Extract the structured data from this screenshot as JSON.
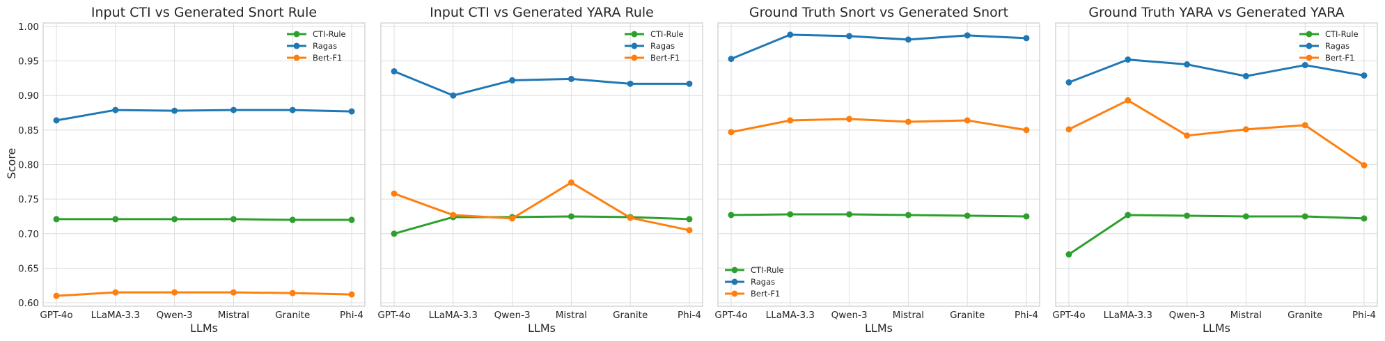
{
  "figure": {
    "ylabel": "Score"
  },
  "chart_data": [
    {
      "type": "line",
      "title": "Input CTI vs Generated Snort Rule",
      "xlabel": "LLMs",
      "ylabel": "Score",
      "categories": [
        "GPT-4o",
        "LLaMA-3.3",
        "Qwen-3",
        "Mistral",
        "Granite",
        "Phi-4"
      ],
      "ylim": [
        0.595,
        1.005
      ],
      "yticks": [
        "0.60",
        "0.65",
        "0.70",
        "0.75",
        "0.80",
        "0.85",
        "0.90",
        "0.95",
        "1.00"
      ],
      "grid": true,
      "legend_position": "top-right",
      "series": [
        {
          "name": "CTI-Rule",
          "color": "#2ca02c",
          "values": [
            0.721,
            0.721,
            0.721,
            0.721,
            0.72,
            0.72
          ]
        },
        {
          "name": "Ragas",
          "color": "#1f77b4",
          "values": [
            0.864,
            0.879,
            0.878,
            0.879,
            0.879,
            0.877
          ]
        },
        {
          "name": "Bert-F1",
          "color": "#ff7f0e",
          "values": [
            0.61,
            0.615,
            0.615,
            0.615,
            0.614,
            0.612
          ]
        }
      ]
    },
    {
      "type": "line",
      "title": "Input CTI vs Generated YARA Rule",
      "xlabel": "LLMs",
      "categories": [
        "GPT-4o",
        "LLaMA-3.3",
        "Qwen-3",
        "Mistral",
        "Granite",
        "Phi-4"
      ],
      "ylim": [
        0.595,
        1.005
      ],
      "grid": true,
      "legend_position": "top-right",
      "series": [
        {
          "name": "CTI-Rule",
          "color": "#2ca02c",
          "values": [
            0.7,
            0.724,
            0.724,
            0.725,
            0.724,
            0.721
          ]
        },
        {
          "name": "Ragas",
          "color": "#1f77b4",
          "values": [
            0.935,
            0.9,
            0.922,
            0.924,
            0.917,
            0.917
          ]
        },
        {
          "name": "Bert-F1",
          "color": "#ff7f0e",
          "values": [
            0.758,
            0.727,
            0.722,
            0.774,
            0.723,
            0.705
          ]
        }
      ]
    },
    {
      "type": "line",
      "title": "Ground Truth Snort vs Generated Snort",
      "xlabel": "LLMs",
      "categories": [
        "GPT-4o",
        "LLaMA-3.3",
        "Qwen-3",
        "Mistral",
        "Granite",
        "Phi-4"
      ],
      "ylim": [
        0.595,
        1.005
      ],
      "grid": true,
      "legend_position": "bottom-left",
      "series": [
        {
          "name": "CTI-Rule",
          "color": "#2ca02c",
          "values": [
            0.727,
            0.728,
            0.728,
            0.727,
            0.726,
            0.725
          ]
        },
        {
          "name": "Ragas",
          "color": "#1f77b4",
          "values": [
            0.953,
            0.988,
            0.986,
            0.981,
            0.987,
            0.983
          ]
        },
        {
          "name": "Bert-F1",
          "color": "#ff7f0e",
          "values": [
            0.847,
            0.864,
            0.866,
            0.862,
            0.864,
            0.85
          ]
        }
      ]
    },
    {
      "type": "line",
      "title": "Ground Truth YARA vs Generated YARA",
      "xlabel": "LLMs",
      "categories": [
        "GPT-4o",
        "LLaMA-3.3",
        "Qwen-3",
        "Mistral",
        "Granite",
        "Phi-4"
      ],
      "ylim": [
        0.595,
        1.005
      ],
      "grid": true,
      "legend_position": "top-right",
      "series": [
        {
          "name": "CTI-Rule",
          "color": "#2ca02c",
          "values": [
            0.67,
            0.727,
            0.726,
            0.725,
            0.725,
            0.722
          ]
        },
        {
          "name": "Ragas",
          "color": "#1f77b4",
          "values": [
            0.919,
            0.952,
            0.945,
            0.928,
            0.944,
            0.929
          ]
        },
        {
          "name": "Bert-F1",
          "color": "#ff7f0e",
          "values": [
            0.851,
            0.893,
            0.842,
            0.851,
            0.857,
            0.799
          ]
        }
      ]
    }
  ]
}
